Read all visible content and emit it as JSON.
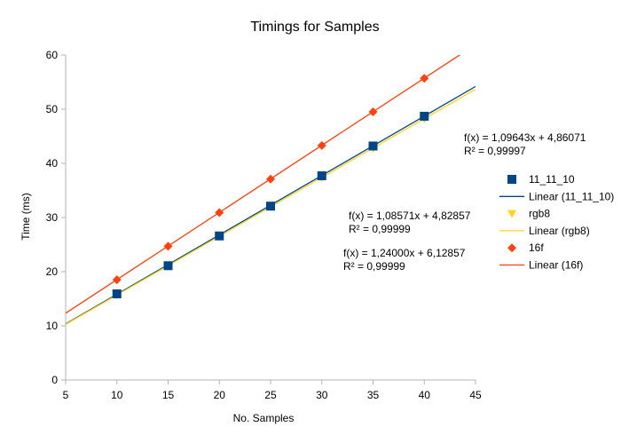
{
  "chart_data": {
    "type": "scatter",
    "title": "Timings for Samples",
    "xlabel": "No. Samples",
    "ylabel": "Time (ms)",
    "xlim": [
      5,
      45
    ],
    "ylim": [
      0,
      60
    ],
    "xticks": [
      5,
      10,
      15,
      20,
      25,
      30,
      35,
      40,
      45
    ],
    "yticks": [
      0,
      10,
      20,
      30,
      40,
      50,
      60
    ],
    "grid": false,
    "legend_position": "right",
    "series": [
      {
        "name": "11_11_10",
        "marker": "square",
        "color": "#004586",
        "x": [
          10,
          15,
          20,
          25,
          30,
          35,
          40
        ],
        "y": [
          15.9,
          21.1,
          26.6,
          32.1,
          37.7,
          43.2,
          48.7
        ],
        "trendline": {
          "name": "Linear (11_11_10)",
          "slope": 1.09643,
          "intercept": 4.86071,
          "color": "#004586",
          "equation": "f(x) = 1,09643x + 4,86071",
          "r2": "R² = 0,99997"
        }
      },
      {
        "name": "rgb8",
        "marker": "triangle-down",
        "color": "#ffd320",
        "x": [
          10,
          15,
          20,
          25,
          30,
          35,
          40
        ],
        "y": [
          15.7,
          21.1,
          26.6,
          32.0,
          37.4,
          42.8,
          48.2
        ],
        "trendline": {
          "name": "Linear (rgb8)",
          "slope": 1.08571,
          "intercept": 4.82857,
          "color": "#ffd320",
          "equation": "f(x) = 1,08571x + 4,82857",
          "r2": "R² = 0,99999"
        }
      },
      {
        "name": "16f",
        "marker": "diamond",
        "color": "#ff420e",
        "x": [
          10,
          15,
          20,
          25,
          30,
          35,
          40
        ],
        "y": [
          18.5,
          24.7,
          30.9,
          37.1,
          43.3,
          49.5,
          55.7
        ],
        "trendline": {
          "name": "Linear (16f)",
          "slope": 1.24,
          "intercept": 6.12857,
          "color": "#ff420e",
          "equation": "f(x) = 1,24000x + 6,12857",
          "r2": "R² = 0,99999"
        }
      }
    ]
  }
}
